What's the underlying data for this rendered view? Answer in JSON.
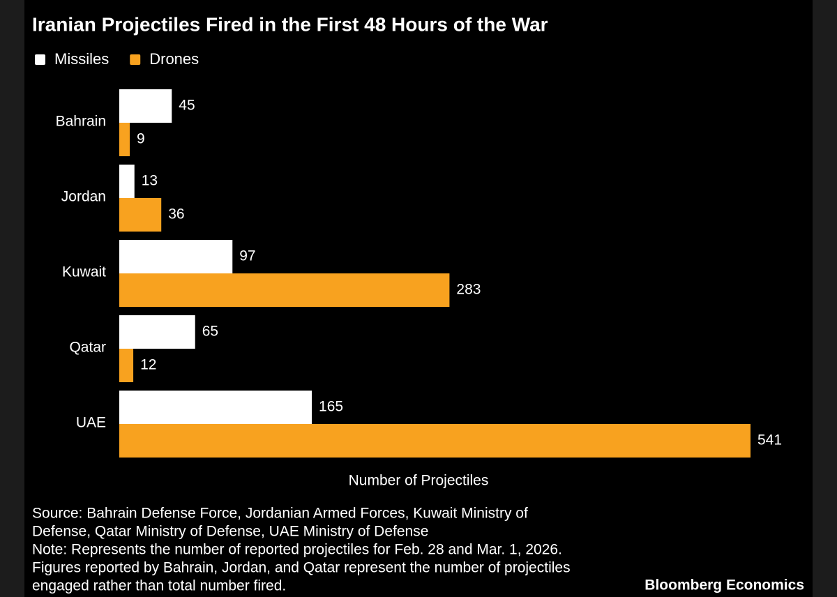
{
  "chart_data": {
    "type": "bar",
    "orientation": "horizontal",
    "title": "Iranian Projectiles Fired in the First 48 Hours of the War",
    "categories": [
      "Bahrain",
      "Jordan",
      "Kuwait",
      "Qatar",
      "UAE"
    ],
    "series": [
      {
        "name": "Missiles",
        "color": "#ffffff",
        "values": [
          45,
          13,
          97,
          65,
          165
        ]
      },
      {
        "name": "Drones",
        "color": "#f8a21f",
        "values": [
          9,
          36,
          283,
          12,
          541
        ]
      }
    ],
    "xlabel": "Number of Projectiles",
    "legend": "top-left",
    "footnote_lines": [
      "Source: Bahrain Defense Force, Jordanian Armed Forces, Kuwait Ministry of",
      "Defense, Qatar Ministry of Defense, UAE Ministry of Defense",
      "Note: Represents the number of reported projectiles for Feb. 28 and Mar. 1, 2026.",
      "Figures reported by Bahrain, Jordan, and Qatar represent the number of projectiles",
      "engaged rather than total number fired."
    ],
    "branding": "Bloomberg Economics"
  }
}
